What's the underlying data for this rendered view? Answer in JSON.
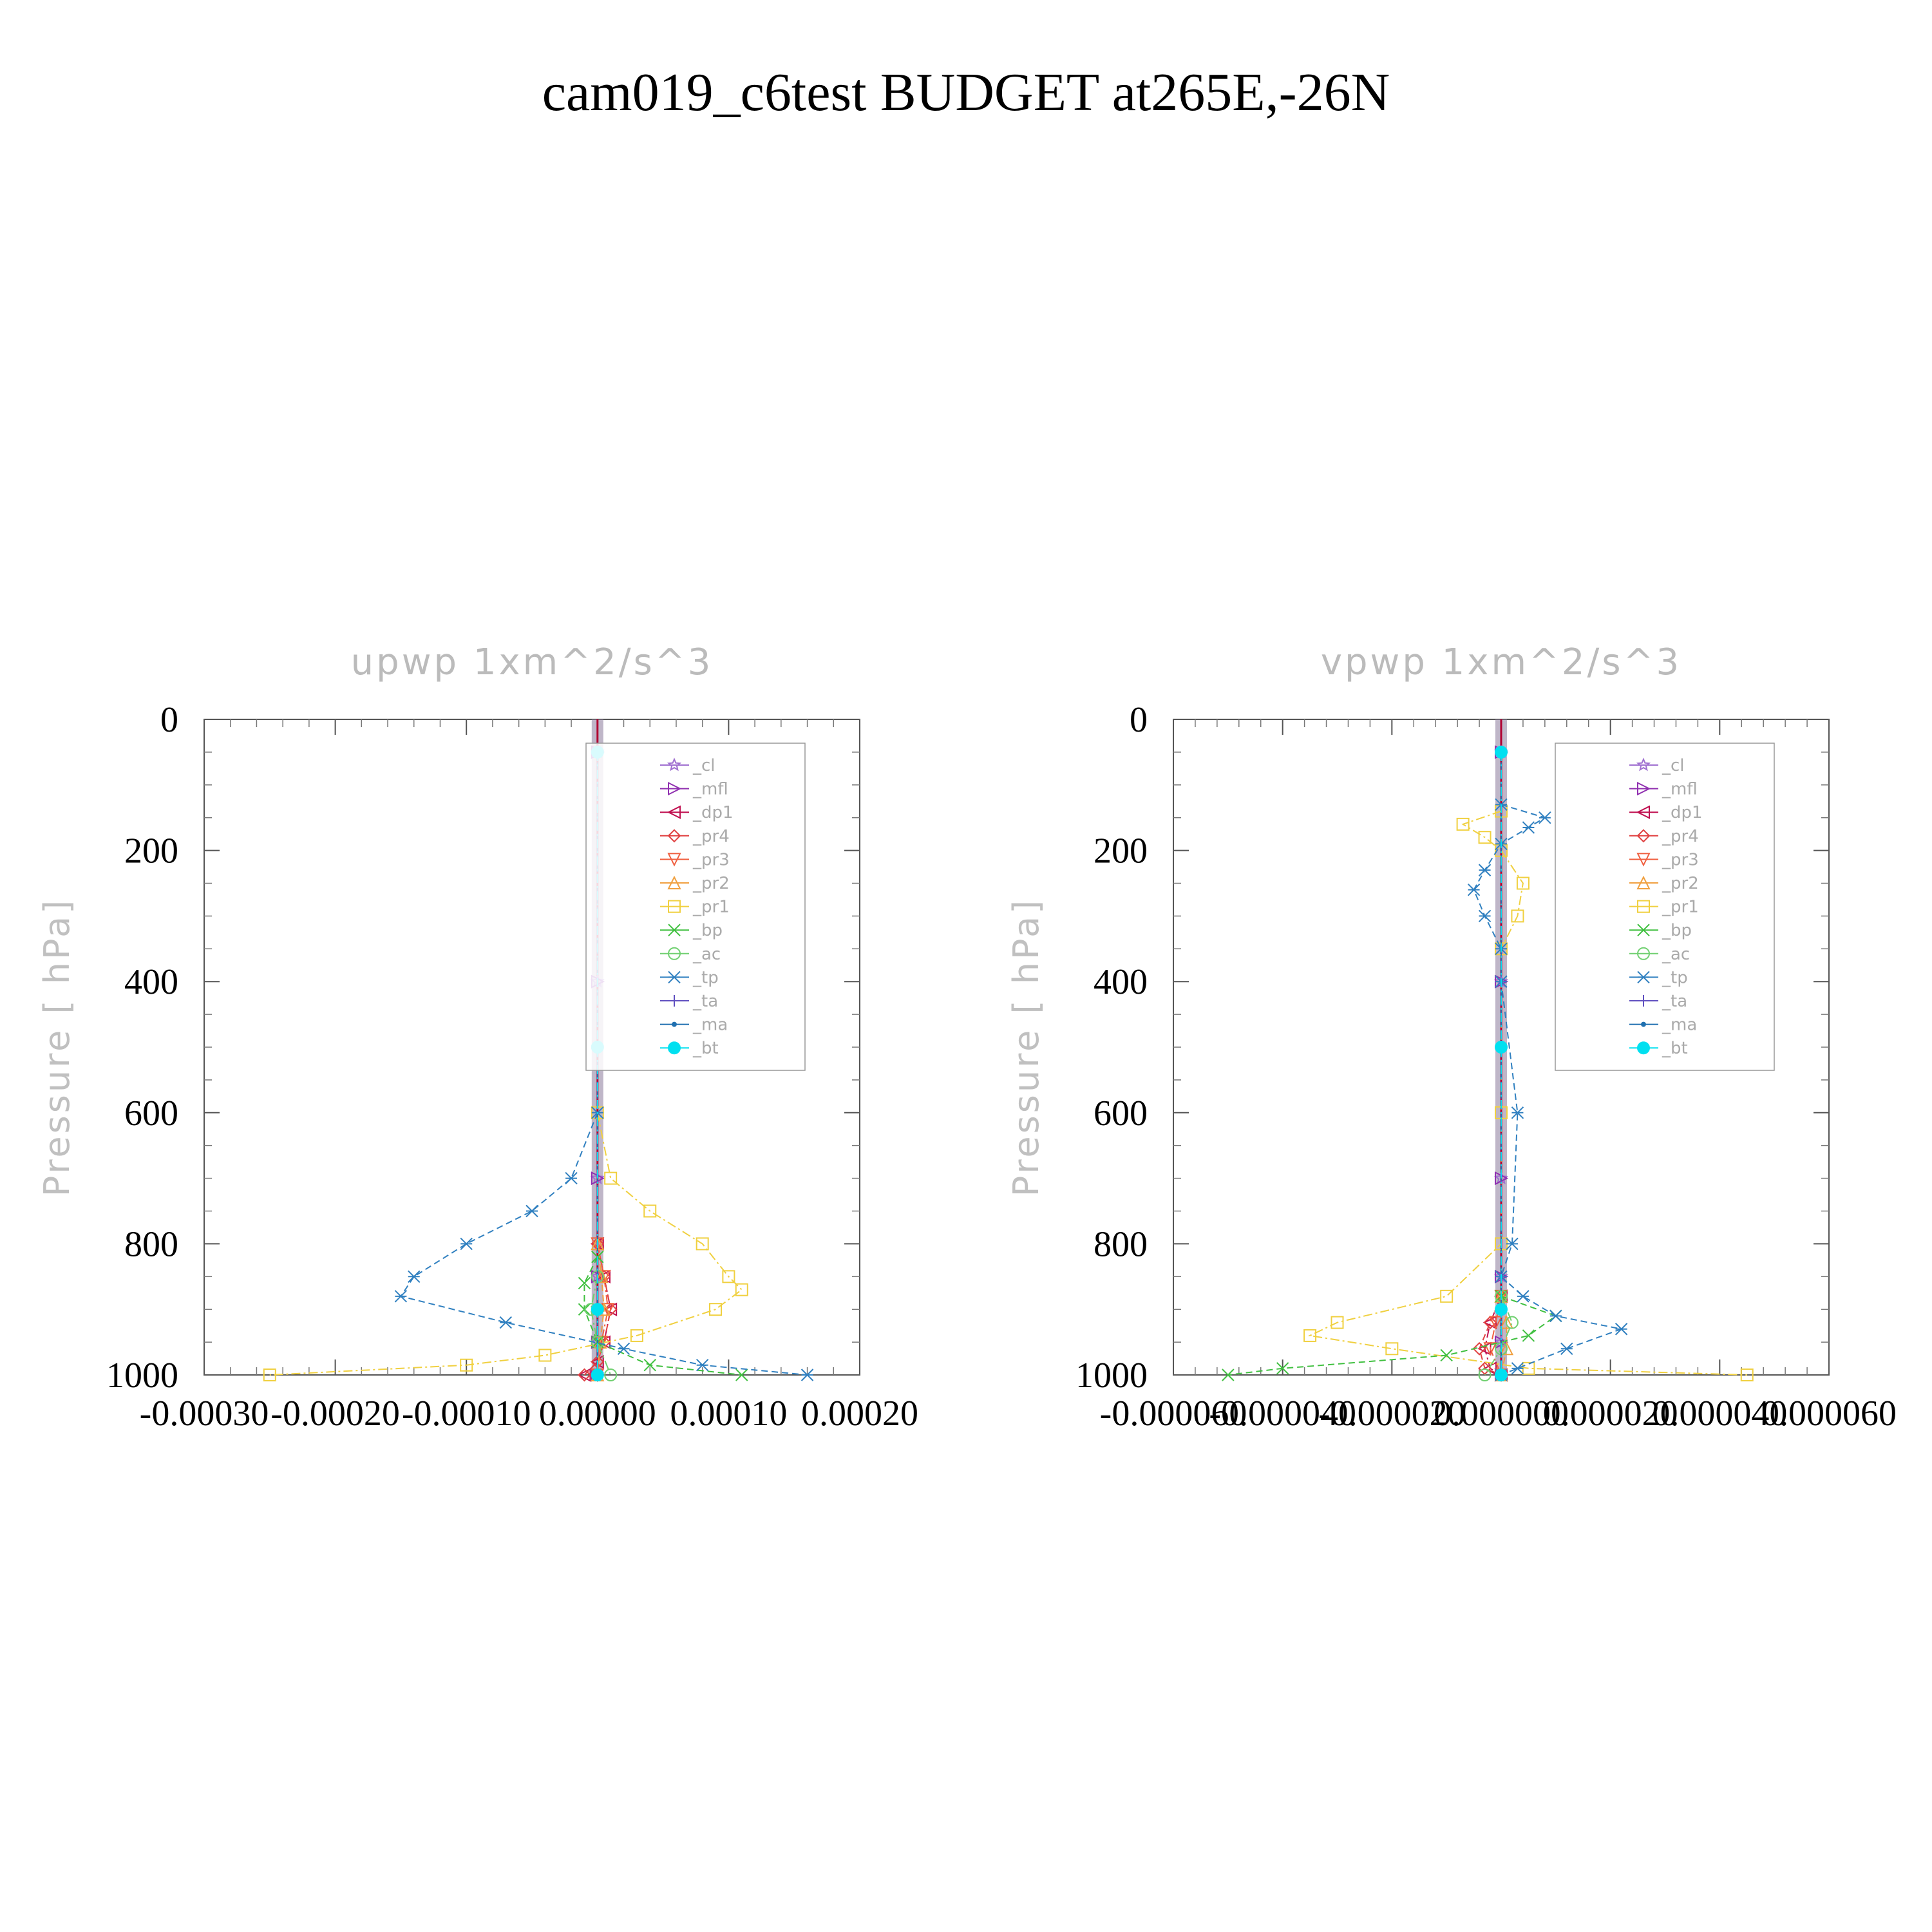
{
  "title": "cam019_c6test  BUDGET at265E,-26N",
  "chart_data": [
    {
      "type": "line",
      "title": "upwp   1xm^2/s^3",
      "ylabel": "Pressure [ hPa]",
      "xlabel": "",
      "xlim": [
        -0.0003,
        0.0002
      ],
      "ylim": [
        1000,
        0
      ],
      "x_ticks": [
        "-0.00030",
        "-0.00020",
        "-0.00010",
        "0.00000",
        "0.00010",
        "0.00020"
      ],
      "y_ticks": [
        "0",
        "200",
        "400",
        "600",
        "800",
        "1000"
      ],
      "legend": {
        "position": "top-right"
      },
      "series": [
        {
          "name": "_cl",
          "color": "#a070d0",
          "y": [
            50,
            400,
            700,
            850,
            950,
            1000
          ],
          "x": [
            0,
            0,
            0,
            0,
            0,
            0
          ]
        },
        {
          "name": "_mfl",
          "color": "#9030b0",
          "y": [
            50,
            400,
            700,
            850,
            950,
            1000
          ],
          "x": [
            0,
            0,
            0,
            0,
            0,
            0
          ]
        },
        {
          "name": "_dp1",
          "color": "#c01050",
          "y": [
            800,
            850,
            900,
            950,
            980,
            1000
          ],
          "x": [
            0.0,
            5e-06,
            1e-05,
            5e-06,
            0.0,
            -1e-05
          ]
        },
        {
          "name": "_pr4",
          "color": "#e04040",
          "y": [
            800,
            850,
            900,
            950,
            980,
            1000
          ],
          "x": [
            0.0,
            5e-06,
            1e-05,
            5e-06,
            0.0,
            -1e-05
          ]
        },
        {
          "name": "_pr3",
          "color": "#f06040",
          "y": [
            800,
            850,
            900,
            950,
            1000
          ],
          "x": [
            0.0,
            5e-06,
            8e-06,
            3e-06,
            0.0
          ]
        },
        {
          "name": "_pr2",
          "color": "#f0a040",
          "y": [
            800,
            850,
            900,
            950,
            1000
          ],
          "x": [
            0.0,
            3e-06,
            5e-06,
            2e-06,
            0.0
          ]
        },
        {
          "name": "_pr1",
          "color": "#f0d040",
          "y": [
            600,
            700,
            750,
            800,
            850,
            870,
            900,
            940,
            970,
            985,
            1000
          ],
          "x": [
            0.0,
            1e-05,
            4e-05,
            8e-05,
            0.0001,
            0.00011,
            9e-05,
            3e-05,
            -4e-05,
            -0.0001,
            -0.00025
          ]
        },
        {
          "name": "_bp",
          "color": "#40c040",
          "y": [
            820,
            860,
            900,
            950,
            985,
            1000
          ],
          "x": [
            0.0,
            -1e-05,
            -1e-05,
            0.0,
            4e-05,
            0.00011
          ]
        },
        {
          "name": "_ac",
          "color": "#70d070",
          "y": [
            850,
            900,
            950,
            1000
          ],
          "x": [
            0.0,
            -5e-06,
            0.0,
            1e-05
          ]
        },
        {
          "name": "_tp",
          "color": "#3080c0",
          "y": [
            600,
            700,
            750,
            800,
            850,
            880,
            920,
            960,
            985,
            1000
          ],
          "x": [
            0.0,
            -2e-05,
            -5e-05,
            -0.0001,
            -0.00014,
            -0.00015,
            -7e-05,
            2e-05,
            8e-05,
            0.00016
          ]
        },
        {
          "name": "_ta",
          "color": "#6050c0",
          "y": [
            50,
            500,
            900,
            1000
          ],
          "x": [
            0,
            0,
            0,
            0
          ]
        },
        {
          "name": "_ma",
          "color": "#2070b0",
          "y": [
            50,
            500,
            900,
            1000
          ],
          "x": [
            0,
            0,
            0,
            0
          ]
        },
        {
          "name": "_bt",
          "color": "#00e0f0",
          "y": [
            50,
            500,
            900,
            1000
          ],
          "x": [
            0,
            0,
            0,
            0
          ]
        }
      ]
    },
    {
      "type": "line",
      "title": "vpwp   1xm^2/s^3",
      "ylabel": "Pressure [ hPa]",
      "xlabel": "",
      "xlim": [
        -6e-05,
        6e-05
      ],
      "ylim": [
        1000,
        0
      ],
      "x_ticks": [
        "-0.000060",
        "-0.000040",
        "-0.000020",
        "0.000000",
        "0.000020",
        "0.000040",
        "0.000060"
      ],
      "y_ticks": [
        "0",
        "200",
        "400",
        "600",
        "800",
        "1000"
      ],
      "legend": {
        "position": "top-right"
      },
      "series": [
        {
          "name": "_cl",
          "color": "#a070d0",
          "y": [
            50,
            400,
            700,
            850,
            950,
            1000
          ],
          "x": [
            0,
            0,
            0,
            0,
            0,
            0
          ]
        },
        {
          "name": "_mfl",
          "color": "#9030b0",
          "y": [
            50,
            400,
            700,
            850,
            950,
            1000
          ],
          "x": [
            0,
            0,
            0,
            0,
            0,
            0
          ]
        },
        {
          "name": "_dp1",
          "color": "#c01050",
          "y": [
            880,
            920,
            960,
            990,
            1000
          ],
          "x": [
            0.0,
            -2e-06,
            -3e-06,
            -2e-06,
            0.0
          ]
        },
        {
          "name": "_pr4",
          "color": "#e04040",
          "y": [
            880,
            920,
            960,
            990,
            1000
          ],
          "x": [
            0.0,
            -2e-06,
            -4e-06,
            -3e-06,
            0.0
          ]
        },
        {
          "name": "_pr3",
          "color": "#f06040",
          "y": [
            880,
            920,
            960,
            1000
          ],
          "x": [
            0.0,
            -1e-06,
            -2e-06,
            0.0
          ]
        },
        {
          "name": "_pr2",
          "color": "#f0a040",
          "y": [
            880,
            920,
            960,
            1000
          ],
          "x": [
            0.0,
            1e-06,
            1e-06,
            0.0
          ]
        },
        {
          "name": "_pr1",
          "color": "#f0d040",
          "y": [
            140,
            160,
            180,
            200,
            250,
            300,
            350,
            600,
            800,
            880,
            920,
            940,
            960,
            990,
            1000
          ],
          "x": [
            0.0,
            -7e-06,
            -3e-06,
            0.0,
            4e-06,
            3e-06,
            0.0,
            0.0,
            0.0,
            -1e-05,
            -3e-05,
            -3.5e-05,
            -2e-05,
            5e-06,
            4.5e-05
          ]
        },
        {
          "name": "_bp",
          "color": "#40c040",
          "y": [
            880,
            910,
            940,
            970,
            990,
            1000
          ],
          "x": [
            0.0,
            1e-05,
            5e-06,
            -1e-05,
            -4e-05,
            -5e-05
          ]
        },
        {
          "name": "_ac",
          "color": "#70d070",
          "y": [
            880,
            920,
            960,
            1000
          ],
          "x": [
            0.0,
            2e-06,
            0.0,
            -3e-06
          ]
        },
        {
          "name": "_tp",
          "color": "#3080c0",
          "y": [
            130,
            150,
            165,
            190,
            230,
            260,
            300,
            350,
            400,
            600,
            800,
            850,
            880,
            910,
            930,
            960,
            990,
            1000
          ],
          "x": [
            0.0,
            8e-06,
            5e-06,
            0.0,
            -3e-06,
            -5e-06,
            -3e-06,
            0.0,
            0.0,
            3e-06,
            2e-06,
            0.0,
            4e-06,
            1e-05,
            2.2e-05,
            1.2e-05,
            3e-06,
            0.0
          ]
        },
        {
          "name": "_ta",
          "color": "#6050c0",
          "y": [
            50,
            500,
            900,
            1000
          ],
          "x": [
            0,
            0,
            0,
            0
          ]
        },
        {
          "name": "_ma",
          "color": "#2070b0",
          "y": [
            50,
            500,
            900,
            1000
          ],
          "x": [
            0,
            0,
            0,
            0
          ]
        },
        {
          "name": "_bt",
          "color": "#00e0f0",
          "y": [
            50,
            500,
            900,
            1000
          ],
          "x": [
            0,
            0,
            0,
            0
          ]
        }
      ]
    }
  ]
}
